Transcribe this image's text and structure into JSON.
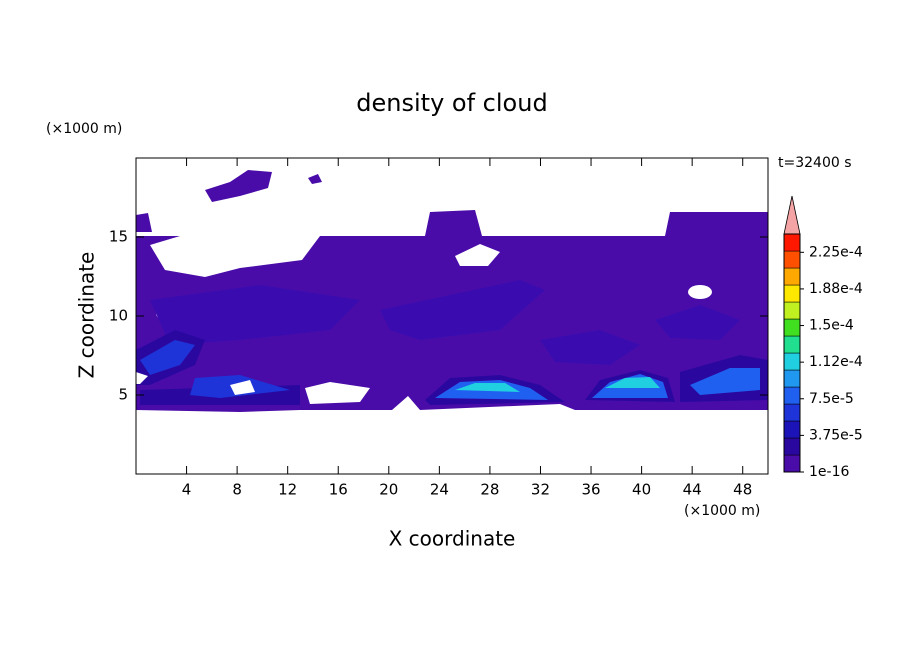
{
  "chart_data": {
    "type": "contour",
    "title": "density of cloud",
    "x_label": "X coordinate",
    "y_label": "Z coordinate",
    "x_unit": "(×1000 m)",
    "y_unit": "(×1000 m)",
    "annotation": "t=32400 s",
    "xlim": [
      0,
      50
    ],
    "xticks": [
      4,
      8,
      12,
      16,
      20,
      24,
      28,
      32,
      36,
      40,
      44,
      48
    ],
    "ylim": [
      0,
      20
    ],
    "yticks": [
      5,
      10,
      15
    ],
    "colorbar": {
      "lim": [
        1e-16,
        0.00024375
      ],
      "colors": [
        "#4a0ca8",
        "#2a08a0",
        "#1c14b8",
        "#1e34d8",
        "#2060f0",
        "#2098f0",
        "#20d0e0",
        "#20e090",
        "#40e020",
        "#c0f020",
        "#ffe800",
        "#ffa800",
        "#ff5000",
        "#ff1800"
      ],
      "ticks": [
        1e-16,
        {
          "value": 3.75e-05,
          "label": "3.75e-5"
        },
        {
          "value": 7.5e-05,
          "label": "7.5e-5"
        },
        {
          "value": 0.0001125,
          "label": "1.12e-4"
        },
        {
          "value": 0.00015,
          "label": "1.5e-4"
        },
        {
          "value": 0.0001875,
          "label": "1.88e-4"
        },
        {
          "value": 0.000225,
          "label": "2.25e-4"
        }
      ],
      "extend_color": "#f4a4a4"
    }
  }
}
